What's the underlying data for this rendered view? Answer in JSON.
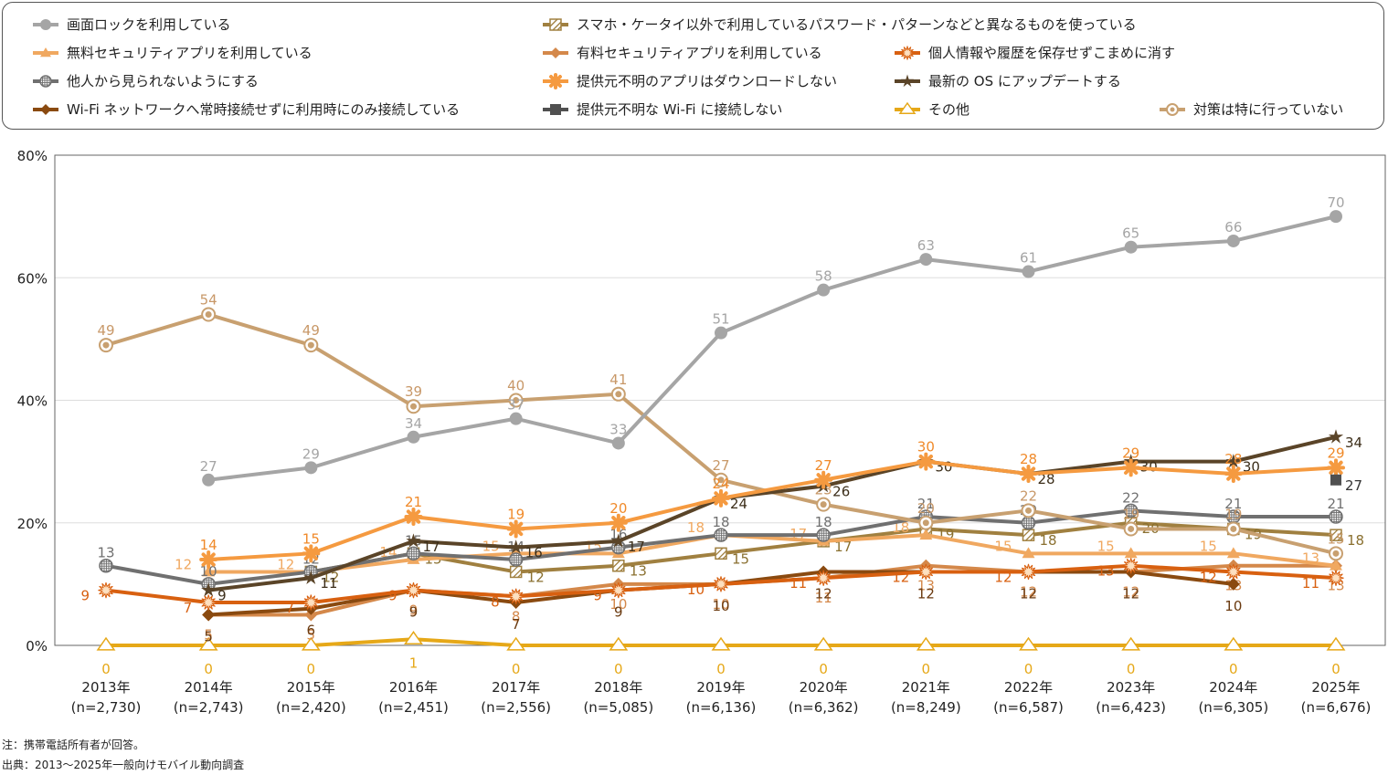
{
  "chart_data": {
    "type": "line",
    "title": "",
    "xlabel": "",
    "ylabel": "",
    "ylim": [
      0,
      80
    ],
    "yticks": [
      "0%",
      "20%",
      "40%",
      "60%",
      "80%"
    ],
    "ytick_values": [
      0,
      20,
      40,
      60,
      80
    ],
    "grid": true,
    "legend_position": "top",
    "categories": [
      "2013年",
      "2014年",
      "2015年",
      "2016年",
      "2017年",
      "2018年",
      "2019年",
      "2020年",
      "2021年",
      "2022年",
      "2023年",
      "2024年",
      "2025年"
    ],
    "category_n": [
      "(n=2,730)",
      "(n=2,743)",
      "(n=2,420)",
      "(n=2,451)",
      "(n=2,556)",
      "(n=5,085)",
      "(n=6,136)",
      "(n=6,362)",
      "(n=8,249)",
      "(n=6,587)",
      "(n=6,423)",
      "(n=6,305)",
      "(n=6,676)"
    ],
    "series": [
      {
        "name": "画面ロックを利用している",
        "color": "#a5a5a5",
        "marker": "circle",
        "values": [
          null,
          27,
          29,
          34,
          37,
          33,
          51,
          58,
          63,
          61,
          65,
          66,
          70
        ]
      },
      {
        "name": "スマホ・ケータイ以外で利用しているパスワード・パターンなどと異なるものを使っている",
        "color": "#a08040",
        "marker": "hatched-square",
        "values": [
          null,
          null,
          12,
          15,
          12,
          13,
          15,
          17,
          19,
          18,
          20,
          19,
          18
        ]
      },
      {
        "name": "無料セキュリティアプリを利用している",
        "color": "#f0a860",
        "marker": "triangle",
        "values": [
          null,
          12,
          12,
          14,
          15,
          15,
          18,
          17,
          18,
          15,
          15,
          15,
          13
        ]
      },
      {
        "name": "有料セキュリティアプリを利用している",
        "color": "#d4884a",
        "marker": "diamond",
        "values": [
          null,
          5,
          5,
          9,
          8,
          10,
          10,
          11,
          13,
          12,
          12,
          13,
          13
        ]
      },
      {
        "name": "個人情報や履歴を保存せずこまめに消す",
        "color": "#d86010",
        "marker": "sunburst",
        "values": [
          9,
          7,
          7,
          9,
          8,
          9,
          10,
          11,
          12,
          12,
          13,
          12,
          11
        ]
      },
      {
        "name": "他人から見られないようにする",
        "color": "#707070",
        "marker": "grid-circle",
        "values": [
          13,
          10,
          12,
          15,
          14,
          16,
          18,
          18,
          21,
          20,
          22,
          21,
          21
        ]
      },
      {
        "name": "提供元不明のアプリはダウンロードしない",
        "color": "#f59a40",
        "marker": "asterisk",
        "values": [
          null,
          14,
          15,
          21,
          19,
          20,
          24,
          27,
          30,
          28,
          29,
          28,
          29
        ]
      },
      {
        "name": "最新の OS にアップデートする",
        "color": "#5a4428",
        "marker": "star",
        "values": [
          null,
          9,
          11,
          17,
          16,
          17,
          24,
          26,
          30,
          28,
          30,
          30,
          34
        ]
      },
      {
        "name": "Wi-Fi ネットワークへ常時接続せずに利用時にのみ接続している",
        "color": "#8a4a10",
        "marker": "diamond",
        "values": [
          null,
          5,
          6,
          9,
          7,
          9,
          10,
          12,
          12,
          12,
          12,
          10,
          null
        ]
      },
      {
        "name": "提供元不明な Wi-Fi に接続しない",
        "color": "#505050",
        "marker": "square",
        "values": [
          null,
          null,
          null,
          null,
          null,
          null,
          null,
          null,
          null,
          null,
          null,
          null,
          27
        ]
      },
      {
        "name": "その他",
        "color": "#e6a818",
        "marker": "open-triangle",
        "values": [
          0,
          0,
          0,
          1,
          0,
          0,
          0,
          0,
          0,
          0,
          0,
          0,
          0
        ]
      },
      {
        "name": "対策は特に行っていない",
        "color": "#c8a070",
        "marker": "ring-circle",
        "values": [
          49,
          54,
          49,
          39,
          40,
          41,
          27,
          23,
          20,
          22,
          19,
          19,
          15
        ]
      }
    ]
  },
  "notes": {
    "note": "注：携帯電話所有者が回答。",
    "source": "出典：2013～2025年一般向けモバイル動向調査"
  }
}
